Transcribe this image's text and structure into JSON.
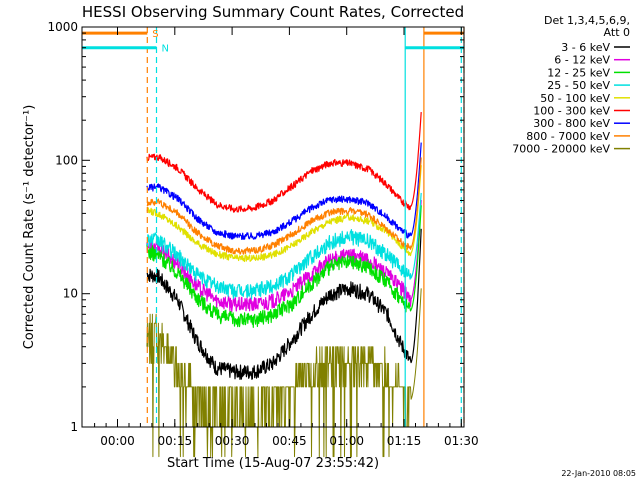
{
  "chart_data": {
    "type": "line",
    "title": "HESSI Observing Summary Count Rates, Corrected",
    "xlabel": "Start Time (15-Aug-07 23:55:42)",
    "ylabel": "Corrected Count Rate (s⁻¹ detector⁻¹)",
    "yscale": "log",
    "ylim": [
      1,
      1000
    ],
    "xlim_minutes": [
      -5,
      95
    ],
    "x_ticks": [
      {
        "label": "00:00",
        "value": 4.3
      },
      {
        "label": "00:15",
        "value": 19.3
      },
      {
        "label": "00:30",
        "value": 34.3
      },
      {
        "label": "00:45",
        "value": 49.3
      },
      {
        "label": "01:00",
        "value": 64.3
      },
      {
        "label": "01:15",
        "value": 79.3
      },
      {
        "label": "01:30",
        "value": 94.3
      }
    ],
    "y_ticks": [
      {
        "label": "1",
        "value": 1
      },
      {
        "label": "10",
        "value": 10
      },
      {
        "label": "100",
        "value": 100
      },
      {
        "label": "1000",
        "value": 1000
      }
    ],
    "grid": false,
    "legend_position": "right",
    "legend_header": [
      "Det 1,3,4,5,6,9,",
      "Att 0"
    ],
    "series": [
      {
        "name": "3 - 6 keV",
        "color": "#000000",
        "x": [
          12,
          15,
          20,
          25,
          30,
          35,
          40,
          45,
          50,
          55,
          60,
          65,
          70,
          75,
          78,
          80,
          81
        ],
        "y": [
          14,
          13.5,
          9,
          4.5,
          2.8,
          2.6,
          2.6,
          3,
          4.5,
          7,
          10,
          11,
          10,
          7,
          4.5,
          3.5,
          3
        ]
      },
      {
        "name": "6 - 12 keV",
        "color": "#e000e0",
        "x": [
          12,
          15,
          20,
          25,
          30,
          35,
          40,
          45,
          50,
          55,
          60,
          65,
          70,
          75,
          78,
          80,
          81
        ],
        "y": [
          23,
          22,
          17,
          11.5,
          9,
          8.3,
          8.3,
          8.8,
          10.5,
          14,
          18,
          19.5,
          18,
          14,
          11.5,
          10,
          9
        ]
      },
      {
        "name": "12 - 25 keV",
        "color": "#00e000",
        "x": [
          12,
          15,
          20,
          25,
          30,
          35,
          40,
          45,
          50,
          55,
          60,
          65,
          70,
          75,
          78,
          80,
          81
        ],
        "y": [
          21,
          19.5,
          14.5,
          9.5,
          7,
          6.4,
          6.4,
          7,
          8.5,
          12,
          16,
          17.5,
          16,
          12,
          9.5,
          8,
          7.5
        ]
      },
      {
        "name": "25 - 50 keV",
        "color": "#00e0e0",
        "x": [
          12,
          15,
          20,
          25,
          30,
          35,
          40,
          45,
          50,
          55,
          60,
          65,
          70,
          75,
          78,
          80,
          81
        ],
        "y": [
          26,
          25,
          19.5,
          14,
          11.5,
          10.5,
          10.5,
          11.5,
          14,
          19,
          24.5,
          27,
          25,
          19.5,
          16,
          14,
          13
        ]
      },
      {
        "name": "50 - 100 keV",
        "color": "#e0e000",
        "x": [
          12,
          15,
          20,
          25,
          30,
          35,
          40,
          45,
          50,
          55,
          60,
          65,
          70,
          75,
          78,
          80,
          81
        ],
        "y": [
          42,
          40,
          32,
          24,
          20,
          18.5,
          18.5,
          19.5,
          23,
          29,
          35,
          37.5,
          35,
          29,
          24,
          21,
          20
        ]
      },
      {
        "name": "100 - 300 keV",
        "color": "#ff0000",
        "x": [
          12,
          15,
          20,
          25,
          30,
          35,
          40,
          45,
          50,
          55,
          60,
          65,
          70,
          75,
          78,
          80,
          81
        ],
        "y": [
          105,
          106,
          88,
          62,
          47,
          43,
          44,
          50,
          64,
          83,
          96,
          95,
          86,
          65,
          52,
          46,
          45
        ]
      },
      {
        "name": "300 - 800 keV",
        "color": "#0000ff",
        "x": [
          12,
          15,
          20,
          25,
          30,
          35,
          40,
          45,
          50,
          55,
          60,
          65,
          70,
          75,
          78,
          80,
          81
        ],
        "y": [
          62,
          63,
          52,
          37,
          29,
          27,
          27,
          29,
          35,
          44,
          51,
          51,
          48,
          37,
          31,
          28,
          27
        ]
      },
      {
        "name": "800 - 7000 keV",
        "color": "#ff8000",
        "x": [
          12,
          15,
          20,
          25,
          30,
          35,
          40,
          45,
          50,
          55,
          60,
          65,
          70,
          75,
          78,
          80,
          81
        ],
        "y": [
          48,
          49,
          40,
          29,
          23,
          21,
          21,
          23,
          28,
          35,
          41,
          42,
          39,
          30,
          25,
          23,
          22
        ]
      },
      {
        "name": "7000 - 20000 keV",
        "color": "#808000",
        "x": [
          12,
          15,
          20,
          25,
          30,
          35,
          40,
          45,
          50,
          55,
          60,
          65,
          70,
          75,
          78,
          80,
          81
        ],
        "y": [
          5,
          4.8,
          2.6,
          1.8,
          1.5,
          1.4,
          1.4,
          1.5,
          1.9,
          2.5,
          3.3,
          3.4,
          3.2,
          2.6,
          2,
          1.8,
          1.6
        ]
      }
    ],
    "bars": [
      {
        "label": "S",
        "color": "#ff8000",
        "y": 900,
        "segments": [
          [
            -5,
            12.1
          ],
          [
            84.5,
            95
          ]
        ]
      },
      {
        "label": "N",
        "color": "#00e0e0",
        "y": 700,
        "segments": [
          [
            -5,
            14.5
          ],
          [
            79.6,
            95
          ]
        ]
      }
    ],
    "vlines": [
      {
        "x": 12.1,
        "color": "#ff8000",
        "style": "dashed"
      },
      {
        "x": 14.5,
        "color": "#00e0e0",
        "style": "dashed"
      },
      {
        "x": 79.6,
        "color": "#00e0e0",
        "style": "solid"
      },
      {
        "x": 84.5,
        "color": "#ff8000",
        "style": "solid"
      },
      {
        "x": 94.3,
        "color": "#00e0e0",
        "style": "dashed"
      },
      {
        "x": 95.0,
        "color": "#ff8000",
        "style": "dashed"
      }
    ],
    "flare": {
      "x_start": 81.5,
      "x_peak": 83.8,
      "peak_value": 230
    }
  },
  "footer": {
    "timestamp": "22-Jan-2010 08:05"
  }
}
